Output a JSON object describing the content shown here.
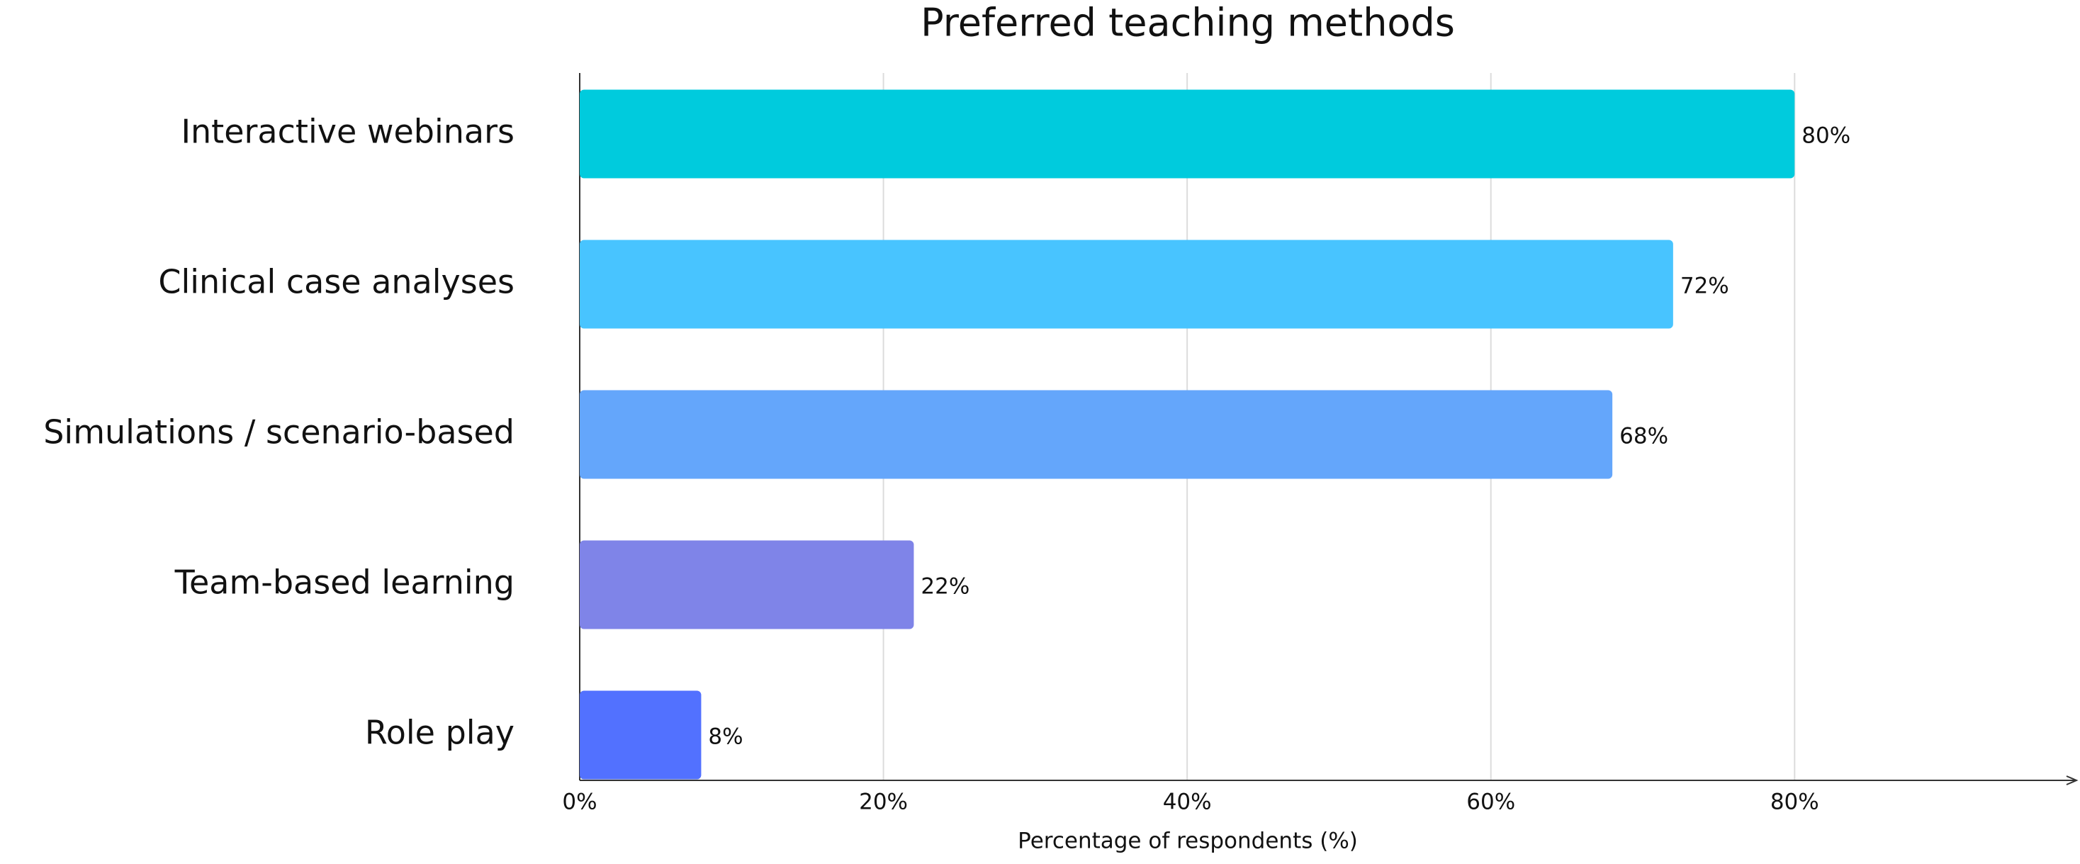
{
  "chart_data": {
    "type": "barh",
    "title": "Preferred teaching methods",
    "x_label": "Percentage of respondents (%)",
    "categories": [
      "Interactive webinars",
      "Clinical case analyses",
      "Simulations / scenario-based",
      "Team-based learning",
      "Role play"
    ],
    "values": [
      80,
      72,
      68,
      22,
      8
    ],
    "value_labels": [
      "80%",
      "72%",
      "68%",
      "22%",
      "8%"
    ],
    "colors": [
      "#00cbdd",
      "#48c4ff",
      "#64a6fb",
      "#7f84e8",
      "#5271ff"
    ],
    "xlim": [
      0,
      98
    ],
    "xticks": [
      {
        "value": 0,
        "label": "0%"
      },
      {
        "value": 20,
        "label": "20%"
      },
      {
        "value": 40,
        "label": "40%"
      },
      {
        "value": 60,
        "label": "60%"
      },
      {
        "value": 80,
        "label": "80%"
      }
    ],
    "grid": true
  }
}
